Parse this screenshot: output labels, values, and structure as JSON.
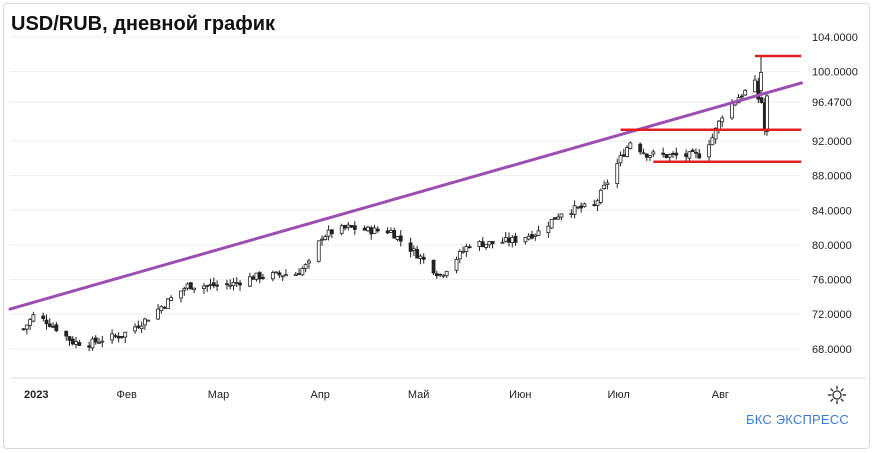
{
  "title": "USD/RUB, дневной график",
  "brand": "БКС ЭКСПРЕСС",
  "icons": {
    "settings": "gear-icon"
  },
  "colors": {
    "trendline": "#9b4fb0",
    "levels": "#e02020",
    "candle": "#222222",
    "grid": "#eeeeee",
    "brand": "#3b7bd6"
  },
  "chart_data": {
    "type": "candlestick",
    "title": "USD/RUB, дневной график",
    "y_ticks": [
      "104.0000",
      "100.0000",
      "96.4700",
      "92.0000",
      "88.0000",
      "84.0000",
      "80.0000",
      "76.0000",
      "72.0000",
      "68.0000"
    ],
    "y_tick_values": [
      104.0,
      100.0,
      96.47,
      92.0,
      88.0,
      84.0,
      80.0,
      76.0,
      72.0,
      68.0
    ],
    "x_ticks": [
      "2023",
      "Фев",
      "Мар",
      "Апр",
      "Май",
      "Июн",
      "Июл",
      "Авг"
    ],
    "x_range": [
      "2023-01-01",
      "2023-08-25"
    ],
    "ylim": [
      64.0,
      106.0
    ],
    "grid": true,
    "close_series": [
      {
        "date": "2023-01-03",
        "close": 70.3
      },
      {
        "date": "2023-01-06",
        "close": 71.8
      },
      {
        "date": "2023-01-10",
        "close": 71.2
      },
      {
        "date": "2023-01-13",
        "close": 70.4
      },
      {
        "date": "2023-01-18",
        "close": 68.8
      },
      {
        "date": "2023-01-23",
        "close": 68.6
      },
      {
        "date": "2023-01-27",
        "close": 69.1
      },
      {
        "date": "2023-02-02",
        "close": 69.6
      },
      {
        "date": "2023-02-09",
        "close": 71.3
      },
      {
        "date": "2023-02-16",
        "close": 73.5
      },
      {
        "date": "2023-02-22",
        "close": 75.3
      },
      {
        "date": "2023-03-01",
        "close": 75.3
      },
      {
        "date": "2023-03-07",
        "close": 75.4
      },
      {
        "date": "2023-03-14",
        "close": 76.3
      },
      {
        "date": "2023-03-20",
        "close": 76.5
      },
      {
        "date": "2023-03-27",
        "close": 76.7
      },
      {
        "date": "2023-03-31",
        "close": 77.8
      },
      {
        "date": "2023-04-04",
        "close": 81.0
      },
      {
        "date": "2023-04-07",
        "close": 81.5
      },
      {
        "date": "2023-04-12",
        "close": 82.0
      },
      {
        "date": "2023-04-18",
        "close": 81.7
      },
      {
        "date": "2023-04-25",
        "close": 81.6
      },
      {
        "date": "2023-04-28",
        "close": 80.5
      },
      {
        "date": "2023-05-04",
        "close": 78.6
      },
      {
        "date": "2023-05-10",
        "close": 76.5
      },
      {
        "date": "2023-05-15",
        "close": 78.5
      },
      {
        "date": "2023-05-19",
        "close": 80.1
      },
      {
        "date": "2023-05-26",
        "close": 80.2
      },
      {
        "date": "2023-06-02",
        "close": 80.6
      },
      {
        "date": "2023-06-09",
        "close": 81.5
      },
      {
        "date": "2023-06-16",
        "close": 83.8
      },
      {
        "date": "2023-06-21",
        "close": 84.2
      },
      {
        "date": "2023-06-26",
        "close": 84.5
      },
      {
        "date": "2023-06-30",
        "close": 87.3
      },
      {
        "date": "2023-07-04",
        "close": 90.0
      },
      {
        "date": "2023-07-07",
        "close": 91.9
      },
      {
        "date": "2023-07-12",
        "close": 90.5
      },
      {
        "date": "2023-07-18",
        "close": 90.3
      },
      {
        "date": "2023-07-24",
        "close": 90.3
      },
      {
        "date": "2023-07-28",
        "close": 90.4
      },
      {
        "date": "2023-08-01",
        "close": 92.4
      },
      {
        "date": "2023-08-04",
        "close": 95.0
      },
      {
        "date": "2023-08-09",
        "close": 97.1
      },
      {
        "date": "2023-08-14",
        "close": 98.6
      },
      {
        "date": "2023-08-15",
        "close": 96.9
      },
      {
        "date": "2023-08-16",
        "close": 96.5
      },
      {
        "date": "2023-08-17",
        "close": 93.2
      }
    ],
    "trendline": {
      "start": {
        "date": "2023-01-01",
        "value": 72.6
      },
      "end": {
        "date": "2023-08-23",
        "value": 98.7
      }
    },
    "horizontal_levels": [
      {
        "value": 101.8,
        "from": "2023-08-14",
        "to": "2023-08-22"
      },
      {
        "value": 93.3,
        "from": "2023-07-04",
        "to": "2023-08-22"
      },
      {
        "value": 89.6,
        "from": "2023-07-14",
        "to": "2023-08-22"
      }
    ]
  }
}
